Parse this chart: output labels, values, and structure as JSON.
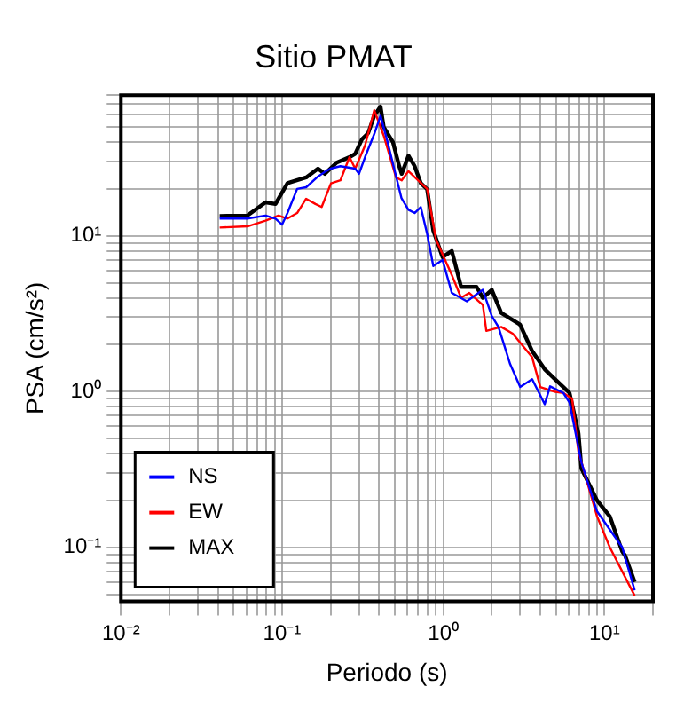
{
  "chart_data": {
    "type": "line",
    "title": "Sitio PMAT",
    "xlabel": "Periodo (s)",
    "ylabel": "PSA (cm/s²)",
    "log": "xy",
    "grid": true,
    "legend": "bottom left",
    "marker": "none",
    "line_style": "solid",
    "xlim": [
      0.01,
      20
    ],
    "ylim": [
      0.045,
      80
    ],
    "xticks": [
      {
        "value": 0.01,
        "label": "10⁻²"
      },
      {
        "value": 0.02,
        "label": null
      },
      {
        "value": 0.03,
        "label": null
      },
      {
        "value": 0.04,
        "label": null
      },
      {
        "value": 0.05,
        "label": null
      },
      {
        "value": 0.06,
        "label": null
      },
      {
        "value": 0.07,
        "label": null
      },
      {
        "value": 0.08,
        "label": null
      },
      {
        "value": 0.09,
        "label": null
      },
      {
        "value": 0.1,
        "label": "10⁻¹"
      },
      {
        "value": 0.2,
        "label": null
      },
      {
        "value": 0.3,
        "label": null
      },
      {
        "value": 0.4,
        "label": null
      },
      {
        "value": 0.5,
        "label": null
      },
      {
        "value": 0.6,
        "label": null
      },
      {
        "value": 0.7,
        "label": null
      },
      {
        "value": 0.8,
        "label": null
      },
      {
        "value": 0.9,
        "label": null
      },
      {
        "value": 1,
        "label": "10⁰"
      },
      {
        "value": 2,
        "label": null
      },
      {
        "value": 3,
        "label": null
      },
      {
        "value": 4,
        "label": null
      },
      {
        "value": 5,
        "label": null
      },
      {
        "value": 6,
        "label": null
      },
      {
        "value": 7,
        "label": null
      },
      {
        "value": 8,
        "label": null
      },
      {
        "value": 9,
        "label": null
      },
      {
        "value": 10,
        "label": "10¹"
      },
      {
        "value": 20,
        "label": null
      }
    ],
    "yticks": [
      {
        "value": 0.05,
        "label": null
      },
      {
        "value": 0.06,
        "label": null
      },
      {
        "value": 0.07,
        "label": null
      },
      {
        "value": 0.08,
        "label": null
      },
      {
        "value": 0.09,
        "label": null
      },
      {
        "value": 0.1,
        "label": "10⁻¹"
      },
      {
        "value": 0.2,
        "label": null
      },
      {
        "value": 0.3,
        "label": null
      },
      {
        "value": 0.4,
        "label": null
      },
      {
        "value": 0.5,
        "label": null
      },
      {
        "value": 0.6,
        "label": null
      },
      {
        "value": 0.7,
        "label": null
      },
      {
        "value": 0.8,
        "label": null
      },
      {
        "value": 0.9,
        "label": null
      },
      {
        "value": 1,
        "label": "10⁰"
      },
      {
        "value": 2,
        "label": null
      },
      {
        "value": 3,
        "label": null
      },
      {
        "value": 4,
        "label": null
      },
      {
        "value": 5,
        "label": null
      },
      {
        "value": 6,
        "label": null
      },
      {
        "value": 7,
        "label": null
      },
      {
        "value": 8,
        "label": null
      },
      {
        "value": 9,
        "label": null
      },
      {
        "value": 10,
        "label": "10¹"
      },
      {
        "value": 20,
        "label": null
      },
      {
        "value": 30,
        "label": null
      },
      {
        "value": 40,
        "label": null
      },
      {
        "value": 50,
        "label": null
      },
      {
        "value": 60,
        "label": null
      },
      {
        "value": 70,
        "label": null
      },
      {
        "value": 80,
        "label": null
      }
    ],
    "series": [
      {
        "name": "NS",
        "color": "#0000ff",
        "x": [
          0.041,
          0.061,
          0.079,
          0.091,
          0.1,
          0.108,
          0.124,
          0.141,
          0.167,
          0.187,
          0.2,
          0.23,
          0.284,
          0.3,
          0.327,
          0.373,
          0.408,
          0.446,
          0.55,
          0.608,
          0.664,
          0.725,
          0.794,
          0.867,
          0.99,
          1.13,
          1.4,
          1.76,
          2.0,
          2.2,
          2.6,
          3.0,
          3.56,
          4.26,
          4.6,
          5.56,
          6.07,
          7.2,
          9.0,
          12.9,
          15.4
        ],
        "values": [
          12.9,
          12.9,
          13.5,
          12.9,
          11.8,
          14,
          20,
          20.5,
          24,
          26,
          27,
          28,
          27,
          25,
          32,
          45,
          59,
          42,
          17.5,
          14.7,
          14,
          15.3,
          10.3,
          6.4,
          7,
          4.3,
          3.8,
          4.5,
          3.05,
          2.6,
          1.5,
          1.07,
          1.2,
          0.83,
          1.08,
          0.98,
          0.85,
          0.35,
          0.17,
          0.1,
          0.053
        ]
      },
      {
        "name": "EW",
        "color": "#ff0000",
        "x": [
          0.041,
          0.061,
          0.079,
          0.095,
          0.108,
          0.124,
          0.141,
          0.161,
          0.176,
          0.201,
          0.23,
          0.262,
          0.284,
          0.327,
          0.373,
          0.427,
          0.509,
          0.552,
          0.608,
          0.794,
          0.9,
          1.13,
          1.29,
          1.45,
          1.76,
          1.85,
          2.29,
          2.7,
          3.56,
          4.0,
          4.86,
          5.56,
          6.3,
          6.9,
          9.0,
          10.8,
          15.4
        ],
        "values": [
          11.3,
          11.5,
          12.5,
          13.5,
          12.9,
          14,
          17.3,
          16,
          15.3,
          21.7,
          22.7,
          32,
          27,
          38,
          64,
          44,
          23.7,
          22.7,
          26,
          20,
          9.5,
          5.6,
          4.0,
          4.3,
          3.6,
          2.45,
          2.6,
          2.35,
          1.66,
          1.07,
          1.0,
          0.98,
          0.9,
          0.41,
          0.158,
          0.1,
          0.049
        ]
      },
      {
        "name": "MAX",
        "color": "#000000",
        "x": [
          0.041,
          0.061,
          0.079,
          0.091,
          0.108,
          0.141,
          0.167,
          0.184,
          0.218,
          0.262,
          0.284,
          0.313,
          0.342,
          0.373,
          0.408,
          0.427,
          0.487,
          0.533,
          0.552,
          0.608,
          0.664,
          0.725,
          0.794,
          0.867,
          0.99,
          1.13,
          1.29,
          1.61,
          1.76,
          2.0,
          2.29,
          2.99,
          3.56,
          4.26,
          4.86,
          5.56,
          6.07,
          6.3,
          6.9,
          7.2,
          9.0,
          10.8,
          12.9,
          13.4,
          15.4
        ],
        "values": [
          13.4,
          13.5,
          16.4,
          16,
          21.8,
          23.7,
          27,
          25,
          29.5,
          32,
          33.6,
          41.7,
          45.6,
          59,
          67.6,
          50,
          40,
          28,
          25,
          32.7,
          28,
          21.8,
          19.9,
          10.8,
          7.3,
          8,
          4.7,
          4.7,
          4.0,
          4.5,
          3.2,
          2.7,
          1.82,
          1.39,
          1.22,
          1.07,
          0.98,
          0.83,
          0.54,
          0.32,
          0.2,
          0.158,
          0.094,
          0.089,
          0.06
        ]
      }
    ]
  }
}
